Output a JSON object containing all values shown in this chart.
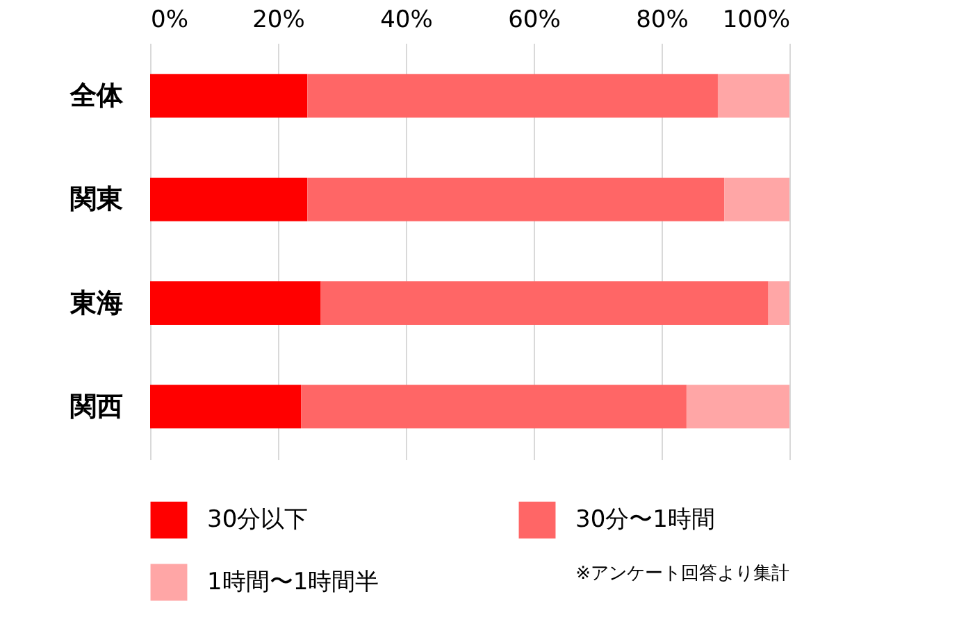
{
  "chart_data": {
    "type": "bar",
    "orientation": "horizontal",
    "stacked": true,
    "categories": [
      "全体",
      "関東",
      "東海",
      "関西"
    ],
    "series": [
      {
        "name": "30分以下",
        "color": "#ff0000",
        "values": [
          24.6,
          24.6,
          26.7,
          23.6
        ]
      },
      {
        "name": "30分〜1時間",
        "color": "#ff6666",
        "values": [
          64.2,
          65.2,
          70.0,
          60.3
        ]
      },
      {
        "name": "1時間〜1時間半",
        "color": "#ffa6a6",
        "values": [
          11.2,
          10.2,
          3.3,
          16.1
        ]
      }
    ],
    "xlim": [
      0,
      100
    ],
    "xticks": [
      {
        "value": 0,
        "label": "0%"
      },
      {
        "value": 20,
        "label": "20%"
      },
      {
        "value": 40,
        "label": "40%"
      },
      {
        "value": 60,
        "label": "60%"
      },
      {
        "value": 80,
        "label": "80%"
      },
      {
        "value": 100,
        "label": "100%"
      }
    ],
    "grid": "x",
    "legend": "bottom",
    "annotations": [
      "※アンケート回答より集計"
    ]
  }
}
